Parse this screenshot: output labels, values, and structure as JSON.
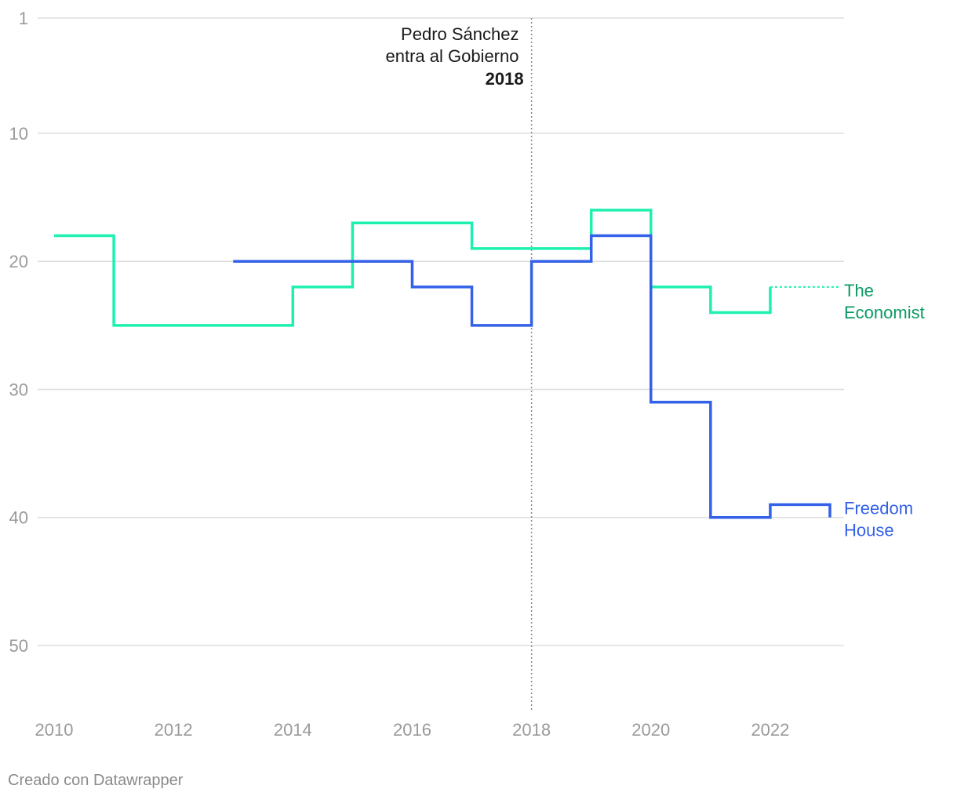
{
  "chart_data": {
    "type": "line",
    "step": true,
    "y_reversed": true,
    "ylim": [
      1,
      55
    ],
    "xlim": [
      2010,
      2023.1
    ],
    "y_ticks": [
      1,
      10,
      20,
      30,
      40,
      50
    ],
    "x_ticks": [
      2010,
      2012,
      2014,
      2016,
      2018,
      2020,
      2022
    ],
    "grid": true,
    "series": [
      {
        "name": "The Economist",
        "label_lines": [
          "The",
          "Economist"
        ],
        "color": "#1ef0b0",
        "label_color": "#0a9a63",
        "x": [
          2010,
          2011,
          2012,
          2013,
          2014,
          2015,
          2016,
          2017,
          2018,
          2019,
          2020,
          2021,
          2022
        ],
        "values": [
          18,
          25,
          25,
          25,
          22,
          17,
          17,
          19,
          19,
          16,
          22,
          24,
          22
        ],
        "end_x": 2023,
        "projected_end": true
      },
      {
        "name": "Freedom House",
        "label_lines": [
          "Freedom",
          "House"
        ],
        "color": "#3361e8",
        "label_color": "#3361e8",
        "x": [
          2013,
          2014,
          2015,
          2016,
          2017,
          2018,
          2019,
          2020,
          2021,
          2022
        ],
        "values": [
          20,
          20,
          20,
          22,
          25,
          20,
          18,
          31,
          40,
          39
        ],
        "end_x": 2023,
        "end_value": 40
      }
    ],
    "annotation": {
      "x": 2018,
      "line1": "Pedro Sánchez",
      "line2": "entra al Gobierno",
      "year": "2018"
    }
  },
  "footer": {
    "credit": "Creado con Datawrapper"
  }
}
